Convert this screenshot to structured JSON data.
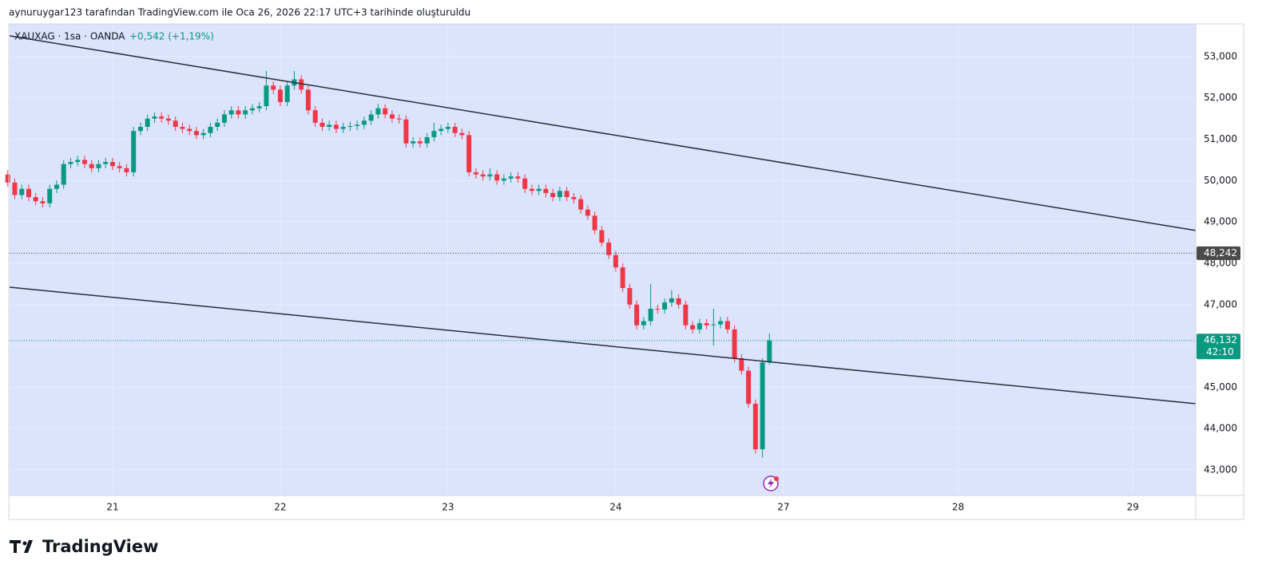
{
  "header": {
    "credit": "aynuruygar123 tarafından TradingView.com ile Oca 26, 2026 22:17 UTC+3 tarihinde oluşturuldu"
  },
  "footer": {
    "brand": "TradingView"
  },
  "chart_data": {
    "type": "candlestick",
    "symbol": "XAUXAG · 1sa · OANDA",
    "change": "+0,542 (+1,19%)",
    "up_color": "#089981",
    "down_color": "#f23645",
    "background": "#dbe3fd",
    "grid": true,
    "xlim": [
      -14.74,
      155
    ],
    "xticks": [
      {
        "value": 0,
        "label": "21"
      },
      {
        "value": 24,
        "label": "22"
      },
      {
        "value": 48,
        "label": "23"
      },
      {
        "value": 72,
        "label": "24"
      },
      {
        "value": 96,
        "label": "27"
      },
      {
        "value": 121,
        "label": "28"
      },
      {
        "value": 146,
        "label": "29"
      }
    ],
    "ylim": [
      42382,
      53790
    ],
    "yticks": [
      {
        "value": 43000,
        "label": "43,000"
      },
      {
        "value": 44000,
        "label": "44,000"
      },
      {
        "value": 45000,
        "label": "45,000"
      },
      {
        "value": 46000,
        "label": "46,000"
      },
      {
        "value": 47000,
        "label": "47,000"
      },
      {
        "value": 48000,
        "label": "48,000"
      },
      {
        "value": 49000,
        "label": "49,000"
      },
      {
        "value": 50000,
        "label": "50,000"
      },
      {
        "value": 51000,
        "label": "51,000"
      },
      {
        "value": 52000,
        "label": "52,000"
      },
      {
        "value": 53000,
        "label": "53,000"
      }
    ],
    "x": [
      -15,
      -14,
      -13,
      -12,
      -11,
      -10,
      -9,
      -8,
      -7,
      -6,
      -5,
      -4,
      -3,
      -2,
      -1,
      0,
      1,
      2,
      3,
      4,
      5,
      6,
      7,
      8,
      9,
      10,
      11,
      12,
      13,
      14,
      15,
      16,
      17,
      18,
      19,
      20,
      21,
      22,
      23,
      24,
      25,
      26,
      27,
      28,
      29,
      30,
      31,
      32,
      33,
      34,
      35,
      36,
      37,
      38,
      39,
      40,
      41,
      42,
      43,
      44,
      45,
      46,
      47,
      48,
      49,
      50,
      51,
      52,
      53,
      54,
      55,
      56,
      57,
      58,
      59,
      60,
      61,
      62,
      63,
      64,
      65,
      66,
      67,
      68,
      69,
      70,
      71,
      72,
      73,
      74,
      75,
      76,
      77,
      78,
      79,
      80,
      81,
      82,
      83,
      84,
      85,
      86,
      87,
      88,
      89,
      90,
      91,
      92,
      93,
      94
    ],
    "open": [
      50150,
      49950,
      49650,
      49800,
      49600,
      49500,
      49450,
      49800,
      49900,
      50400,
      50450,
      50500,
      50400,
      50300,
      50400,
      50450,
      50350,
      50300,
      50200,
      51200,
      51300,
      51500,
      51550,
      51500,
      51450,
      51300,
      51250,
      51200,
      51100,
      51150,
      51300,
      51400,
      51600,
      51700,
      51600,
      51700,
      51750,
      51800,
      52300,
      52200,
      51900,
      52300,
      52450,
      52200,
      51700,
      51400,
      51300,
      51350,
      51250,
      51300,
      51320,
      51350,
      51450,
      51600,
      51750,
      51600,
      51500,
      51480,
      50900,
      50950,
      50900,
      51050,
      51200,
      51250,
      51300,
      51150,
      51100,
      50200,
      50150,
      50100,
      50150,
      50000,
      50050,
      50100,
      50050,
      49800,
      49750,
      49800,
      49700,
      49600,
      49750,
      49600,
      49550,
      49300,
      49150,
      48800,
      48500,
      48200,
      47900,
      47400,
      47000,
      46500,
      46600,
      46900,
      46880,
      47050,
      47150,
      47000,
      46500,
      46400,
      46550,
      46500,
      46520,
      46600,
      46400,
      45700,
      45400,
      44600,
      43500,
      45600
    ],
    "high": [
      50250,
      50050,
      49900,
      49900,
      49700,
      49600,
      49900,
      50000,
      50500,
      50550,
      50600,
      50600,
      50500,
      50500,
      50550,
      50550,
      50450,
      50400,
      51300,
      51400,
      51600,
      51650,
      51650,
      51600,
      51550,
      51400,
      51350,
      51300,
      51250,
      51400,
      51500,
      51700,
      51800,
      51800,
      51800,
      51850,
      51900,
      52650,
      52400,
      52300,
      52400,
      52650,
      52550,
      52300,
      51800,
      51500,
      51450,
      51450,
      51400,
      51420,
      51450,
      51550,
      51700,
      51850,
      51850,
      51700,
      51600,
      51580,
      51050,
      51050,
      51150,
      51400,
      51350,
      51400,
      51400,
      51250,
      51200,
      50300,
      50250,
      50300,
      50250,
      50150,
      50200,
      50200,
      50150,
      49900,
      49900,
      49900,
      49800,
      49850,
      49850,
      49700,
      49650,
      49400,
      49250,
      48900,
      48600,
      48300,
      48000,
      47500,
      47100,
      46700,
      47500,
      47000,
      47150,
      47350,
      47250,
      47100,
      46600,
      46650,
      46650,
      46900,
      46700,
      46700,
      46500,
      45800,
      45500,
      44700,
      45700,
      46300
    ],
    "low": [
      49850,
      49550,
      49550,
      49500,
      49400,
      49350,
      49350,
      49700,
      49800,
      50300,
      50350,
      50300,
      50200,
      50200,
      50300,
      50250,
      50200,
      50100,
      50100,
      51100,
      51200,
      51400,
      51400,
      51350,
      51200,
      51150,
      51100,
      51000,
      51000,
      51050,
      51200,
      51300,
      51500,
      51500,
      51500,
      51600,
      51650,
      51700,
      52100,
      51800,
      51800,
      52200,
      52100,
      51600,
      51300,
      51200,
      51200,
      51150,
      51150,
      51200,
      51220,
      51250,
      51350,
      51500,
      51500,
      51400,
      51380,
      50800,
      50800,
      50800,
      50800,
      50950,
      51100,
      51150,
      51050,
      51000,
      50100,
      50050,
      50000,
      50000,
      49900,
      49900,
      49950,
      49950,
      49700,
      49650,
      49650,
      49600,
      49500,
      49500,
      49500,
      49450,
      49200,
      49050,
      48700,
      48400,
      48100,
      47800,
      47300,
      46900,
      46400,
      46400,
      46500,
      46780,
      46780,
      46950,
      46900,
      46400,
      46300,
      46300,
      46400,
      46000,
      46420,
      46300,
      45600,
      45300,
      44500,
      43400,
      43300,
      45550
    ],
    "close": [
      49950,
      49650,
      49800,
      49600,
      49500,
      49450,
      49800,
      49900,
      50400,
      50450,
      50500,
      50400,
      50300,
      50400,
      50450,
      50350,
      50300,
      50200,
      51200,
      51300,
      51500,
      51550,
      51500,
      51450,
      51300,
      51250,
      51200,
      51100,
      51150,
      51300,
      51400,
      51600,
      51700,
      51600,
      51700,
      51750,
      51800,
      52300,
      52200,
      51900,
      52300,
      52450,
      52200,
      51700,
      51400,
      51300,
      51350,
      51250,
      51300,
      51320,
      51350,
      51450,
      51600,
      51750,
      51600,
      51500,
      51480,
      50900,
      50950,
      50900,
      51050,
      51200,
      51250,
      51300,
      51150,
      51100,
      50200,
      50150,
      50100,
      50150,
      50000,
      50050,
      50100,
      50050,
      49800,
      49750,
      49800,
      49700,
      49600,
      49750,
      49600,
      49550,
      49300,
      49150,
      48800,
      48500,
      48200,
      47900,
      47400,
      47000,
      46500,
      46600,
      46900,
      46880,
      47050,
      47150,
      47000,
      46500,
      46400,
      46550,
      46500,
      46520,
      46600,
      46400,
      45700,
      45400,
      44600,
      43500,
      45600,
      46132
    ],
    "trend_lines": [
      {
        "color": "#2a2e39",
        "x": [
          -14.74,
          155
        ],
        "y": [
          53502,
          48792
        ]
      },
      {
        "color": "#2a2e39",
        "x": [
          -14.74,
          155
        ],
        "y": [
          47421,
          44602
        ]
      }
    ],
    "price_lines": [
      {
        "value": 48242,
        "label": "48,242",
        "color": "#4a4a4a"
      },
      {
        "value": 46132,
        "label": "46,132",
        "countdown": "42:10",
        "color": "#089981"
      }
    ]
  }
}
